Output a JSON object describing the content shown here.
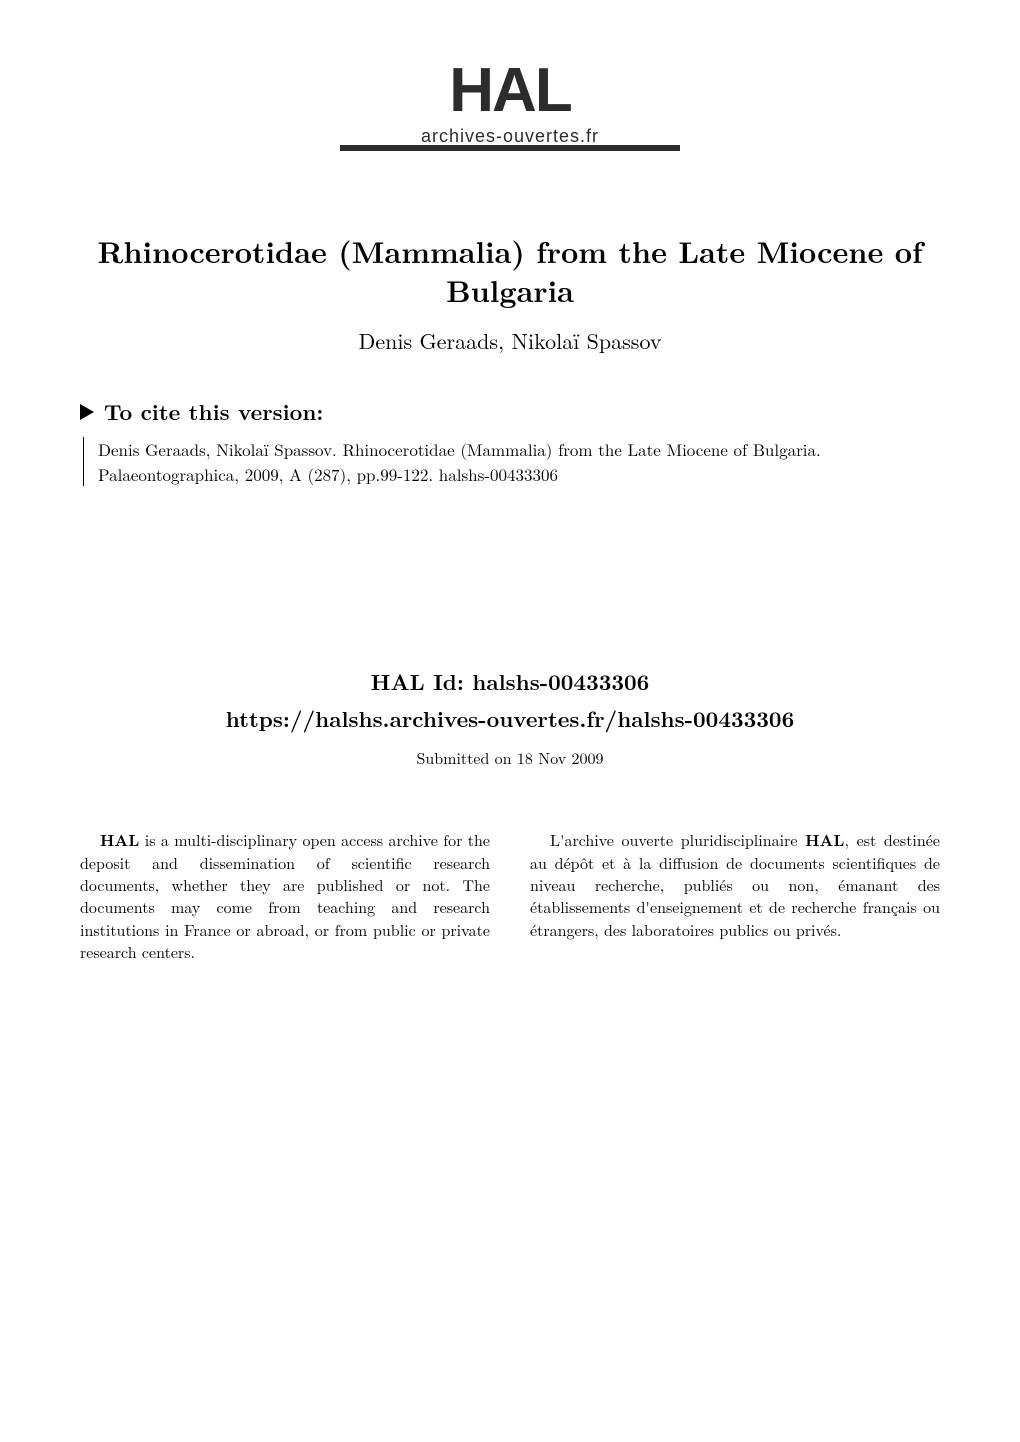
{
  "logo": {
    "text": "HAL",
    "url": "archives-ouvertes.fr",
    "text_color": "#2c2c2c",
    "underline_color": "#2c2c2c"
  },
  "paper": {
    "title_line1": "Rhinocerotidae (Mammalia) from the Late Miocene of",
    "title_line2": "Bulgaria",
    "authors": "Denis Geraads, Nikolaï Spassov",
    "title_fontsize": 30,
    "authors_fontsize": 22
  },
  "cite": {
    "heading": "To cite this version:",
    "body": "Denis Geraads, Nikolaï Spassov. Rhinocerotidae (Mammalia) from the Late Miocene of Bulgaria. Palaeontographica, 2009, A (287), pp.99-122. halshs-00433306",
    "triangle_color": "#000000",
    "border_color": "#000000"
  },
  "hal": {
    "id_label": "HAL Id: halshs-00433306",
    "url": "https://halshs.archives-ouvertes.fr/halshs-00433306",
    "submitted": "Submitted on 18 Nov 2009"
  },
  "abstract": {
    "left_bold": "HAL",
    "left_text": " is a multi-disciplinary open access archive for the deposit and dissemination of scientific research documents, whether they are published or not. The documents may come from teaching and research institutions in France or abroad, or from public or private research centers.",
    "right_text_1": "L'archive ouverte pluridisciplinaire ",
    "right_bold": "HAL",
    "right_text_2": ", est destinée au dépôt et à la diffusion de documents scientifiques de niveau recherche, publiés ou non, émanant des établissements d'enseignement et de recherche français ou étrangers, des laboratoires publics ou privés."
  },
  "colors": {
    "background": "#ffffff",
    "text": "#000000"
  }
}
